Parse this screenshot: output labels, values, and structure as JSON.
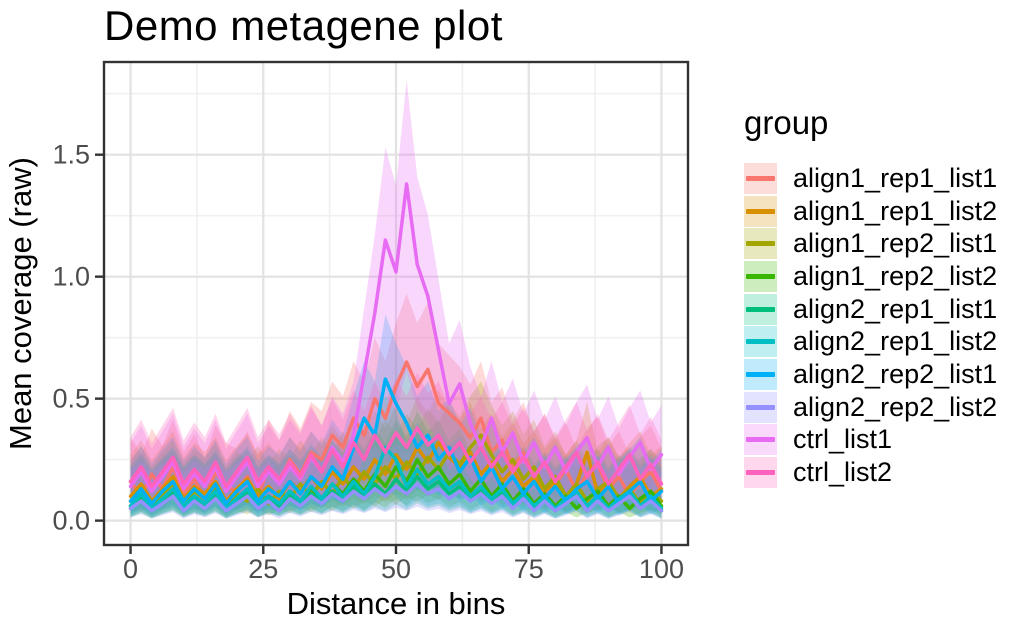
{
  "legend": {
    "title": "group"
  },
  "chart_data": {
    "type": "line",
    "title": "Demo metagene plot",
    "xlabel": "Distance in bins",
    "ylabel": "Mean coverage (raw)",
    "xlim": [
      -5,
      105
    ],
    "ylim": [
      -0.1,
      1.88
    ],
    "x_ticks": [
      0,
      25,
      50,
      75,
      100
    ],
    "x_tick_labels": [
      "0",
      "25",
      "50",
      "75",
      "100"
    ],
    "x_minor_ticks": [
      12.5,
      37.5,
      62.5,
      87.5
    ],
    "y_ticks": [
      0.0,
      0.5,
      1.0,
      1.5
    ],
    "y_tick_labels": [
      "0.0",
      "0.5",
      "1.0",
      "1.5"
    ],
    "y_minor_ticks": [
      0.25,
      0.75,
      1.25,
      1.75
    ],
    "grid": {
      "on": true,
      "major_color": "#e2e2e2",
      "minor_color": "#f0f0f0"
    },
    "panel": {
      "background": "#ffffff",
      "border_color": "#333333",
      "tick_color": "#333333",
      "tick_label_color": "#4d4d4d"
    },
    "legend_position": "right",
    "ribbon": {
      "opacity": 0.27,
      "upper_mult": 1.2,
      "upper_add": 0.15,
      "lower_mult": 0.45,
      "lower_add": -0.01
    },
    "x": [
      0,
      2,
      4,
      6,
      8,
      10,
      12,
      14,
      16,
      18,
      20,
      22,
      24,
      26,
      28,
      30,
      32,
      34,
      36,
      38,
      40,
      42,
      44,
      46,
      48,
      50,
      52,
      54,
      56,
      58,
      60,
      62,
      64,
      66,
      68,
      70,
      72,
      74,
      76,
      78,
      80,
      82,
      84,
      86,
      88,
      90,
      92,
      94,
      96,
      98,
      100
    ],
    "series": [
      {
        "name": "align1_rep1_list1",
        "color": "#F8766D",
        "values": [
          0.16,
          0.1,
          0.19,
          0.13,
          0.22,
          0.11,
          0.17,
          0.09,
          0.2,
          0.14,
          0.12,
          0.18,
          0.1,
          0.22,
          0.15,
          0.25,
          0.19,
          0.28,
          0.25,
          0.35,
          0.3,
          0.42,
          0.35,
          0.5,
          0.42,
          0.55,
          0.65,
          0.55,
          0.62,
          0.48,
          0.44,
          0.4,
          0.34,
          0.42,
          0.28,
          0.33,
          0.22,
          0.28,
          0.18,
          0.24,
          0.15,
          0.21,
          0.12,
          0.19,
          0.23,
          0.13,
          0.18,
          0.1,
          0.16,
          0.2,
          0.12
        ]
      },
      {
        "name": "align1_rep1_list2",
        "color": "#D89000",
        "values": [
          0.1,
          0.15,
          0.08,
          0.13,
          0.18,
          0.09,
          0.14,
          0.11,
          0.16,
          0.08,
          0.13,
          0.17,
          0.1,
          0.14,
          0.09,
          0.16,
          0.12,
          0.18,
          0.13,
          0.2,
          0.15,
          0.22,
          0.17,
          0.25,
          0.19,
          0.27,
          0.21,
          0.3,
          0.24,
          0.32,
          0.26,
          0.22,
          0.28,
          0.19,
          0.24,
          0.16,
          0.21,
          0.14,
          0.18,
          0.12,
          0.16,
          0.1,
          0.15,
          0.28,
          0.11,
          0.16,
          0.09,
          0.14,
          0.18,
          0.1,
          0.13
        ]
      },
      {
        "name": "align1_rep2_list1",
        "color": "#A3A500",
        "values": [
          0.08,
          0.13,
          0.06,
          0.11,
          0.15,
          0.07,
          0.12,
          0.09,
          0.14,
          0.06,
          0.11,
          0.08,
          0.13,
          0.07,
          0.12,
          0.09,
          0.15,
          0.1,
          0.16,
          0.11,
          0.18,
          0.13,
          0.2,
          0.15,
          0.22,
          0.17,
          0.24,
          0.19,
          0.26,
          0.21,
          0.28,
          0.23,
          0.3,
          0.35,
          0.27,
          0.2,
          0.25,
          0.17,
          0.22,
          0.13,
          0.18,
          0.1,
          0.15,
          0.08,
          0.13,
          0.16,
          0.09,
          0.13,
          0.07,
          0.12,
          0.08
        ]
      },
      {
        "name": "align1_rep2_list2",
        "color": "#39B600",
        "values": [
          0.06,
          0.1,
          0.05,
          0.09,
          0.12,
          0.06,
          0.1,
          0.07,
          0.11,
          0.05,
          0.09,
          0.12,
          0.06,
          0.1,
          0.07,
          0.12,
          0.08,
          0.13,
          0.09,
          0.15,
          0.11,
          0.17,
          0.12,
          0.19,
          0.14,
          0.22,
          0.16,
          0.25,
          0.18,
          0.22,
          0.15,
          0.19,
          0.12,
          0.17,
          0.1,
          0.15,
          0.08,
          0.13,
          0.07,
          0.11,
          0.06,
          0.1,
          0.05,
          0.09,
          0.12,
          0.06,
          0.1,
          0.05,
          0.09,
          0.12,
          0.06
        ]
      },
      {
        "name": "align2_rep1_list1",
        "color": "#00BF7D",
        "values": [
          0.05,
          0.09,
          0.04,
          0.08,
          0.11,
          0.05,
          0.09,
          0.06,
          0.1,
          0.04,
          0.08,
          0.11,
          0.05,
          0.09,
          0.06,
          0.1,
          0.07,
          0.11,
          0.08,
          0.12,
          0.09,
          0.14,
          0.1,
          0.15,
          0.11,
          0.17,
          0.12,
          0.18,
          0.13,
          0.16,
          0.11,
          0.14,
          0.09,
          0.13,
          0.08,
          0.12,
          0.06,
          0.1,
          0.05,
          0.09,
          0.04,
          0.08,
          0.11,
          0.05,
          0.09,
          0.04,
          0.08,
          0.11,
          0.05,
          0.09,
          0.04
        ]
      },
      {
        "name": "align2_rep1_list2",
        "color": "#00BFC4",
        "values": [
          0.06,
          0.11,
          0.05,
          0.09,
          0.13,
          0.06,
          0.1,
          0.07,
          0.12,
          0.05,
          0.09,
          0.13,
          0.06,
          0.1,
          0.07,
          0.12,
          0.08,
          0.14,
          0.09,
          0.15,
          0.1,
          0.16,
          0.11,
          0.18,
          0.3,
          0.25,
          0.14,
          0.21,
          0.15,
          0.18,
          0.13,
          0.16,
          0.1,
          0.14,
          0.09,
          0.13,
          0.07,
          0.11,
          0.06,
          0.1,
          0.05,
          0.09,
          0.12,
          0.06,
          0.1,
          0.05,
          0.09,
          0.12,
          0.06,
          0.1,
          0.05
        ]
      },
      {
        "name": "align2_rep2_list1",
        "color": "#00B0F6",
        "values": [
          0.08,
          0.13,
          0.07,
          0.12,
          0.16,
          0.08,
          0.13,
          0.09,
          0.15,
          0.07,
          0.12,
          0.16,
          0.08,
          0.13,
          0.1,
          0.16,
          0.11,
          0.18,
          0.14,
          0.22,
          0.17,
          0.3,
          0.42,
          0.35,
          0.58,
          0.48,
          0.4,
          0.3,
          0.35,
          0.25,
          0.3,
          0.2,
          0.26,
          0.16,
          0.22,
          0.13,
          0.18,
          0.11,
          0.16,
          0.09,
          0.14,
          0.08,
          0.13,
          0.16,
          0.09,
          0.14,
          0.07,
          0.12,
          0.16,
          0.08,
          0.12
        ]
      },
      {
        "name": "align2_rep2_list2",
        "color": "#9590FF",
        "values": [
          0.05,
          0.08,
          0.04,
          0.07,
          0.1,
          0.04,
          0.08,
          0.05,
          0.09,
          0.04,
          0.07,
          0.1,
          0.05,
          0.08,
          0.04,
          0.09,
          0.06,
          0.1,
          0.07,
          0.11,
          0.08,
          0.12,
          0.09,
          0.13,
          0.1,
          0.14,
          0.11,
          0.15,
          0.11,
          0.13,
          0.09,
          0.12,
          0.08,
          0.11,
          0.07,
          0.1,
          0.05,
          0.09,
          0.04,
          0.08,
          0.04,
          0.07,
          0.1,
          0.04,
          0.08,
          0.04,
          0.07,
          0.1,
          0.05,
          0.08,
          0.04
        ]
      },
      {
        "name": "ctrl_list1",
        "color": "#E76BF3",
        "values": [
          0.14,
          0.2,
          0.12,
          0.18,
          0.24,
          0.13,
          0.19,
          0.14,
          0.22,
          0.12,
          0.18,
          0.24,
          0.14,
          0.2,
          0.15,
          0.22,
          0.17,
          0.26,
          0.2,
          0.3,
          0.24,
          0.35,
          0.6,
          0.85,
          1.15,
          1.02,
          1.38,
          1.05,
          0.92,
          0.7,
          0.48,
          0.56,
          0.4,
          0.3,
          0.42,
          0.28,
          0.36,
          0.24,
          0.32,
          0.22,
          0.3,
          0.2,
          0.28,
          0.34,
          0.22,
          0.3,
          0.19,
          0.26,
          0.32,
          0.21,
          0.27
        ]
      },
      {
        "name": "ctrl_list2",
        "color": "#FF62BC",
        "values": [
          0.16,
          0.22,
          0.14,
          0.2,
          0.26,
          0.15,
          0.21,
          0.16,
          0.24,
          0.14,
          0.2,
          0.26,
          0.16,
          0.22,
          0.17,
          0.24,
          0.18,
          0.27,
          0.2,
          0.29,
          0.22,
          0.32,
          0.25,
          0.35,
          0.28,
          0.36,
          0.3,
          0.38,
          0.31,
          0.35,
          0.27,
          0.32,
          0.24,
          0.3,
          0.22,
          0.28,
          0.2,
          0.26,
          0.18,
          0.24,
          0.16,
          0.22,
          0.28,
          0.18,
          0.24,
          0.15,
          0.21,
          0.27,
          0.17,
          0.23,
          0.15
        ]
      }
    ]
  }
}
